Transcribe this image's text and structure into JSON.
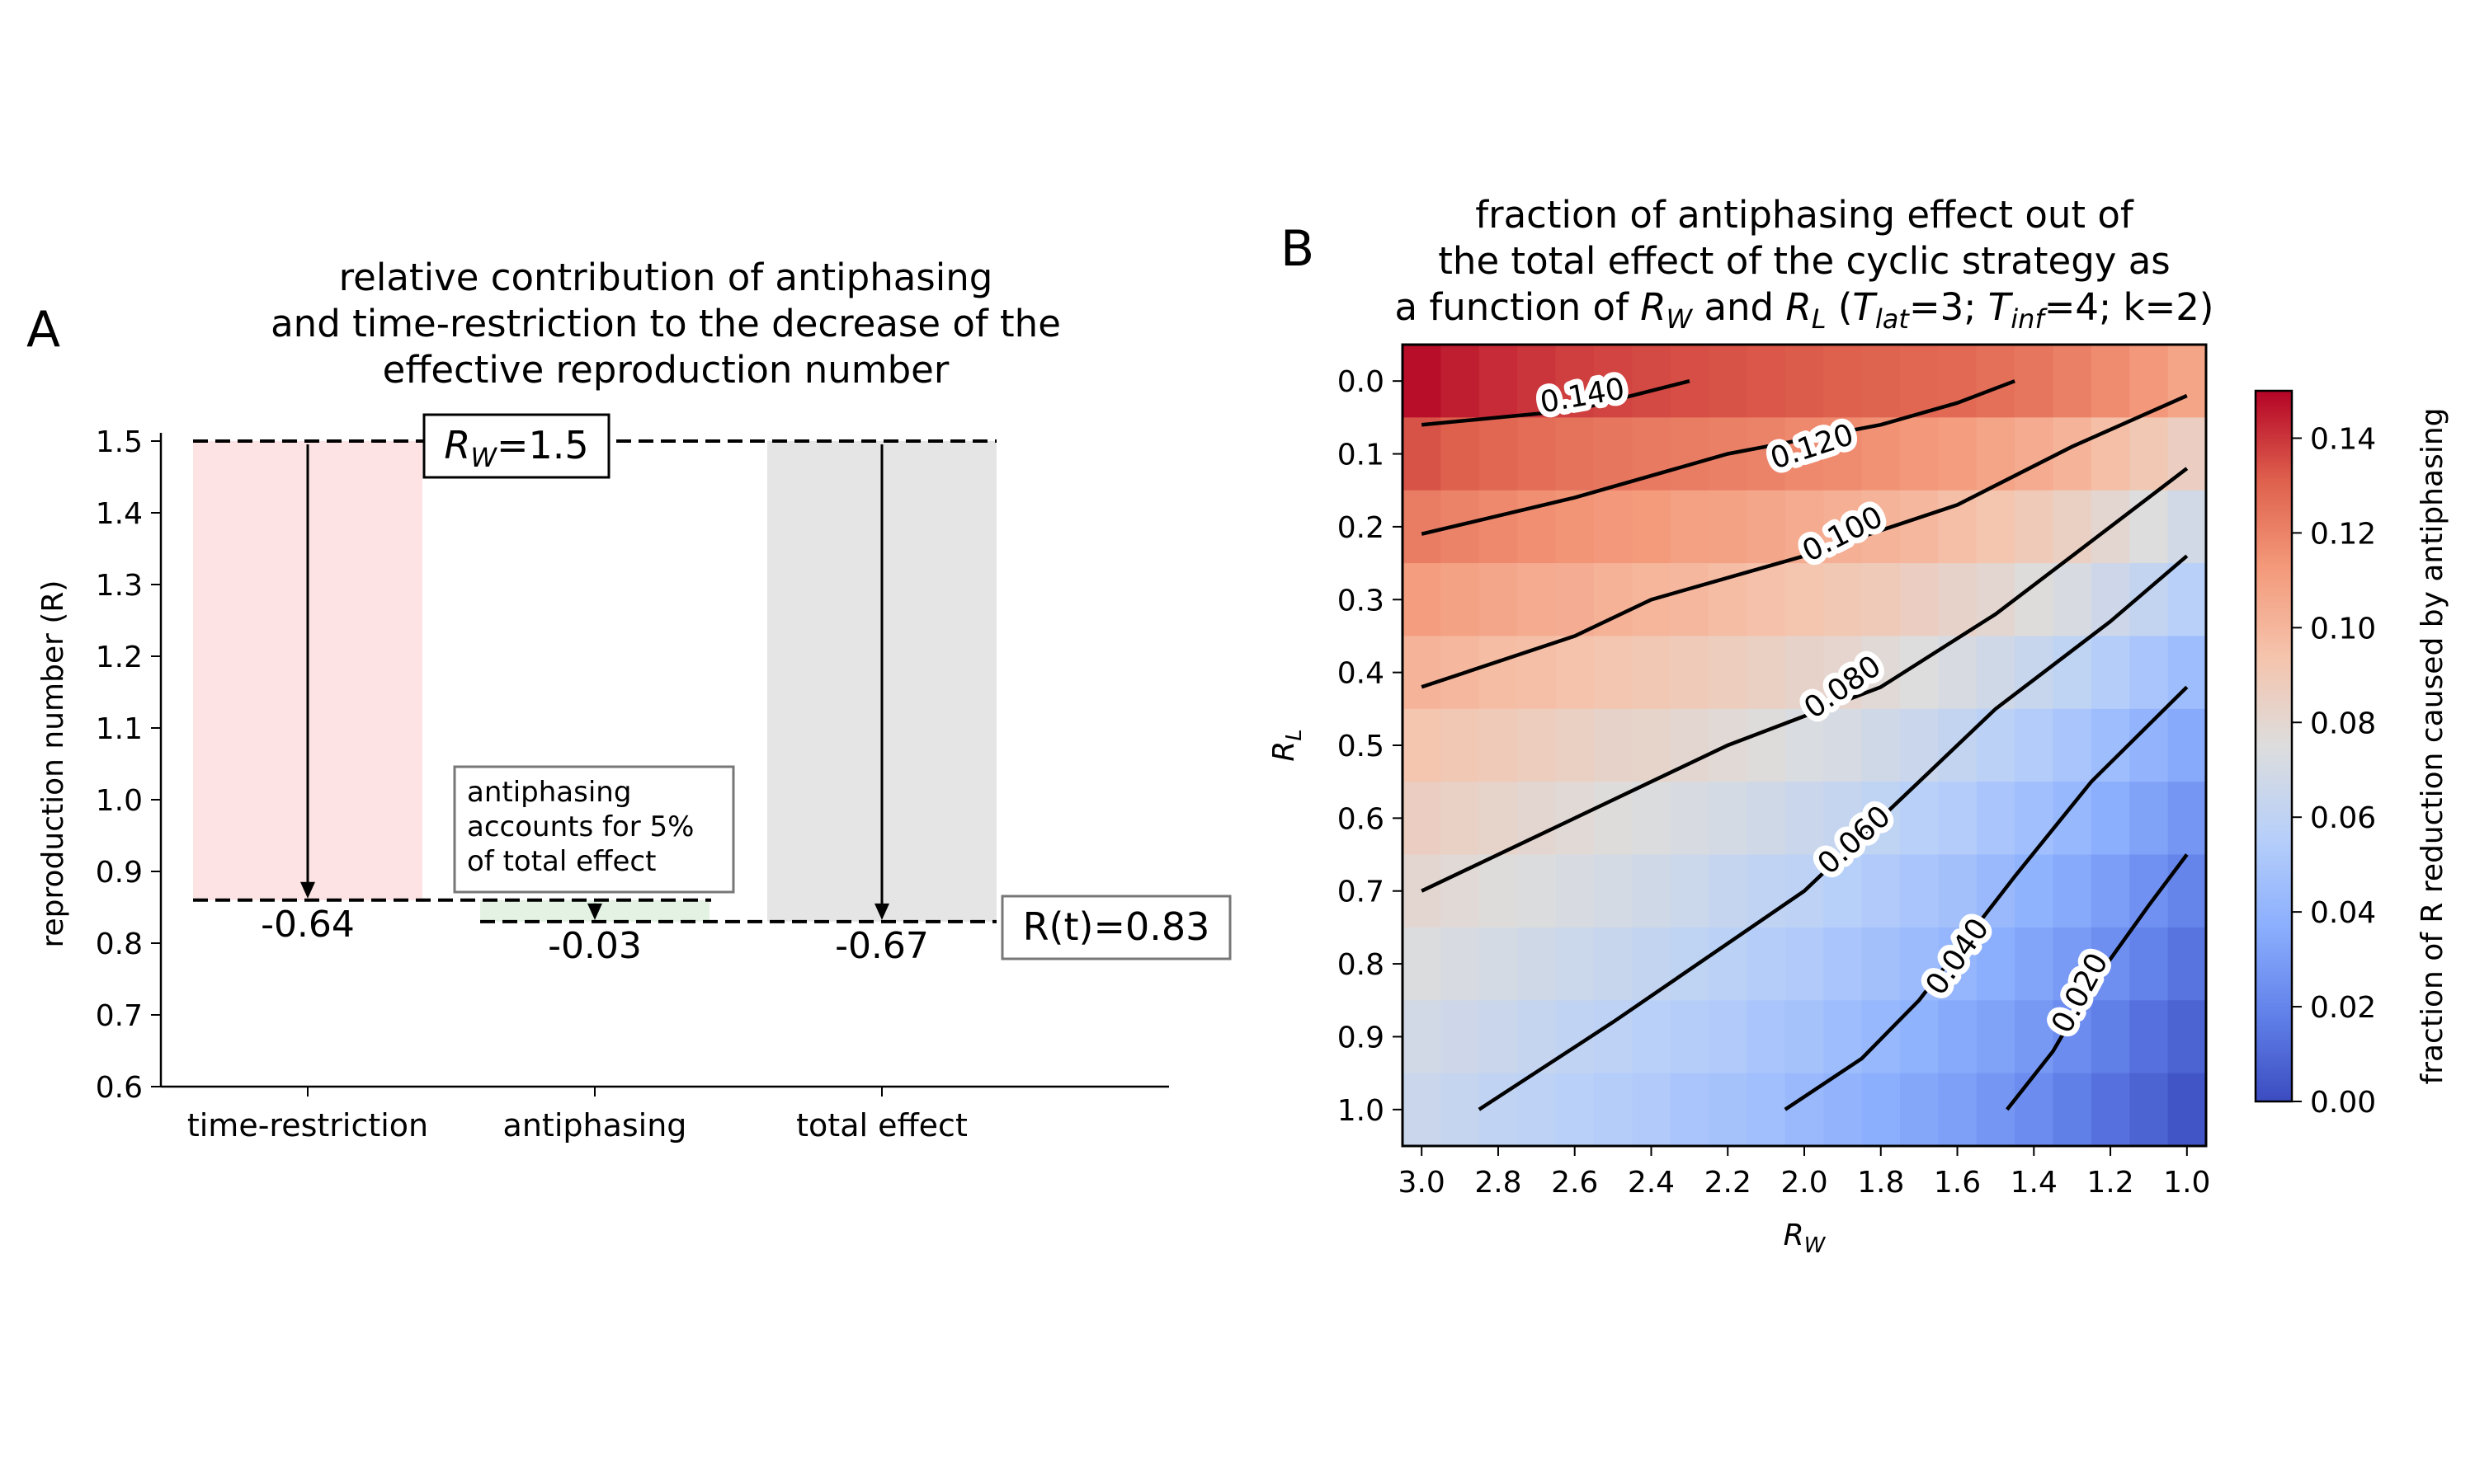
{
  "chart_data": [
    {
      "panel": "A",
      "type": "bar",
      "title_lines": [
        "relative contribution of antiphasing",
        "and time-restriction to the decrease of the",
        "effective reproduction number"
      ],
      "ylabel": "reproduction number (R)",
      "ylim": [
        0.6,
        1.5
      ],
      "yticks": [
        "0.6",
        "0.7",
        "0.8",
        "0.9",
        "1.0",
        "1.1",
        "1.2",
        "1.3",
        "1.4",
        "1.5"
      ],
      "categories": [
        "time-restriction",
        "antiphasing",
        "total effect"
      ],
      "bars": [
        {
          "category": "time-restriction",
          "from": 1.5,
          "to": 0.86,
          "delta_label": "-0.64",
          "color": "#fde3e3"
        },
        {
          "category": "antiphasing",
          "from": 0.86,
          "to": 0.83,
          "delta_label": "-0.03",
          "color": "#e3f2e3"
        },
        {
          "category": "total effect",
          "from": 1.5,
          "to": 0.83,
          "delta_label": "-0.67",
          "color": "#e5e5e5"
        }
      ],
      "rw_value": 1.5,
      "rt_value": 0.83,
      "rw_label": {
        "sym": "R",
        "sub": "W",
        "rest": "=1.5"
      },
      "rt_label": "R(t)=0.83",
      "annotation_lines": [
        "antiphasing",
        "accounts for 5%",
        "of total effect"
      ]
    },
    {
      "panel": "B",
      "type": "heatmap",
      "title_lines": [
        "fraction of antiphasing effect out of",
        "the total effect of the cyclic strategy as"
      ],
      "title_line3": [
        {
          "t": "a function of "
        },
        {
          "t": "R",
          "i": 1
        },
        {
          "t": "W",
          "sub": 1,
          "i": 1
        },
        {
          "t": " and "
        },
        {
          "t": "R",
          "i": 1
        },
        {
          "t": "L",
          "sub": 1,
          "i": 1
        },
        {
          "t": " ("
        },
        {
          "t": "T",
          "i": 1
        },
        {
          "t": "lat",
          "sub": 1,
          "i": 1
        },
        {
          "t": "=3; "
        },
        {
          "t": "T",
          "i": 1
        },
        {
          "t": "inf",
          "sub": 1,
          "i": 1
        },
        {
          "t": "=4; k=2)"
        }
      ],
      "xlabel": {
        "sym": "R",
        "sub": "W"
      },
      "ylabel": {
        "sym": "R",
        "sub": "L"
      },
      "x_values": [
        3.0,
        2.9,
        2.8,
        2.7,
        2.6,
        2.5,
        2.4,
        2.3,
        2.2,
        2.1,
        2.0,
        1.9,
        1.8,
        1.7,
        1.6,
        1.5,
        1.4,
        1.3,
        1.2,
        1.1,
        1.0
      ],
      "y_values": [
        0.0,
        0.1,
        0.2,
        0.3,
        0.4,
        0.5,
        0.6,
        0.7,
        0.8,
        0.9,
        1.0
      ],
      "x_ticks": [
        "3.0",
        "2.8",
        "2.6",
        "2.4",
        "2.2",
        "2.0",
        "1.8",
        "1.6",
        "1.4",
        "1.2",
        "1.0"
      ],
      "y_ticks": [
        "0.0",
        "0.1",
        "0.2",
        "0.3",
        "0.4",
        "0.5",
        "0.6",
        "0.7",
        "0.8",
        "0.9",
        "1.0"
      ],
      "values": [
        [
          0.148,
          0.145,
          0.142,
          0.14,
          0.138,
          0.137,
          0.136,
          0.135,
          0.134,
          0.133,
          0.132,
          0.131,
          0.13,
          0.129,
          0.128,
          0.126,
          0.124,
          0.121,
          0.117,
          0.113,
          0.108
        ],
        [
          0.134,
          0.131,
          0.129,
          0.127,
          0.125,
          0.124,
          0.123,
          0.122,
          0.121,
          0.12,
          0.118,
          0.117,
          0.115,
          0.113,
          0.111,
          0.108,
          0.105,
          0.101,
          0.096,
          0.091,
          0.086
        ],
        [
          0.122,
          0.12,
          0.118,
          0.116,
          0.114,
          0.113,
          0.112,
          0.11,
          0.109,
          0.107,
          0.105,
          0.103,
          0.101,
          0.099,
          0.096,
          0.093,
          0.089,
          0.085,
          0.08,
          0.075,
          0.069
        ],
        [
          0.111,
          0.109,
          0.107,
          0.105,
          0.104,
          0.102,
          0.1,
          0.099,
          0.097,
          0.095,
          0.093,
          0.091,
          0.089,
          0.086,
          0.083,
          0.08,
          0.076,
          0.072,
          0.067,
          0.062,
          0.057
        ],
        [
          0.101,
          0.099,
          0.097,
          0.096,
          0.094,
          0.092,
          0.091,
          0.089,
          0.087,
          0.085,
          0.083,
          0.081,
          0.078,
          0.075,
          0.072,
          0.068,
          0.064,
          0.06,
          0.055,
          0.05,
          0.045
        ],
        [
          0.093,
          0.091,
          0.089,
          0.087,
          0.085,
          0.083,
          0.082,
          0.08,
          0.078,
          0.076,
          0.073,
          0.071,
          0.068,
          0.065,
          0.062,
          0.058,
          0.054,
          0.05,
          0.045,
          0.04,
          0.035
        ],
        [
          0.086,
          0.084,
          0.082,
          0.08,
          0.078,
          0.076,
          0.074,
          0.072,
          0.07,
          0.068,
          0.065,
          0.063,
          0.06,
          0.057,
          0.054,
          0.05,
          0.046,
          0.042,
          0.037,
          0.032,
          0.027
        ],
        [
          0.08,
          0.078,
          0.076,
          0.074,
          0.072,
          0.07,
          0.068,
          0.066,
          0.063,
          0.061,
          0.059,
          0.056,
          0.053,
          0.05,
          0.047,
          0.043,
          0.039,
          0.035,
          0.03,
          0.025,
          0.02
        ],
        [
          0.074,
          0.072,
          0.07,
          0.068,
          0.066,
          0.064,
          0.062,
          0.06,
          0.058,
          0.055,
          0.053,
          0.05,
          0.047,
          0.044,
          0.041,
          0.037,
          0.033,
          0.029,
          0.024,
          0.019,
          0.014
        ],
        [
          0.069,
          0.067,
          0.065,
          0.063,
          0.061,
          0.059,
          0.057,
          0.055,
          0.053,
          0.05,
          0.048,
          0.045,
          0.042,
          0.039,
          0.035,
          0.032,
          0.028,
          0.023,
          0.018,
          0.013,
          0.008
        ],
        [
          0.065,
          0.063,
          0.061,
          0.059,
          0.057,
          0.055,
          0.053,
          0.05,
          0.048,
          0.046,
          0.043,
          0.04,
          0.037,
          0.034,
          0.031,
          0.027,
          0.023,
          0.018,
          0.013,
          0.008,
          0.003
        ]
      ],
      "contour_labels": [
        "0.140",
        "0.120",
        "0.100",
        "0.080",
        "0.060",
        "0.040",
        "0.020"
      ],
      "colorbar_label": "fraction of R reduction caused by antiphasing",
      "colorbar_range": [
        0,
        0.15
      ],
      "colorbar_ticks": [
        "0.00",
        "0.02",
        "0.04",
        "0.06",
        "0.08",
        "0.10",
        "0.12",
        "0.14"
      ],
      "colormap": "coolwarm"
    }
  ],
  "panel_labels": [
    "A",
    "B"
  ]
}
